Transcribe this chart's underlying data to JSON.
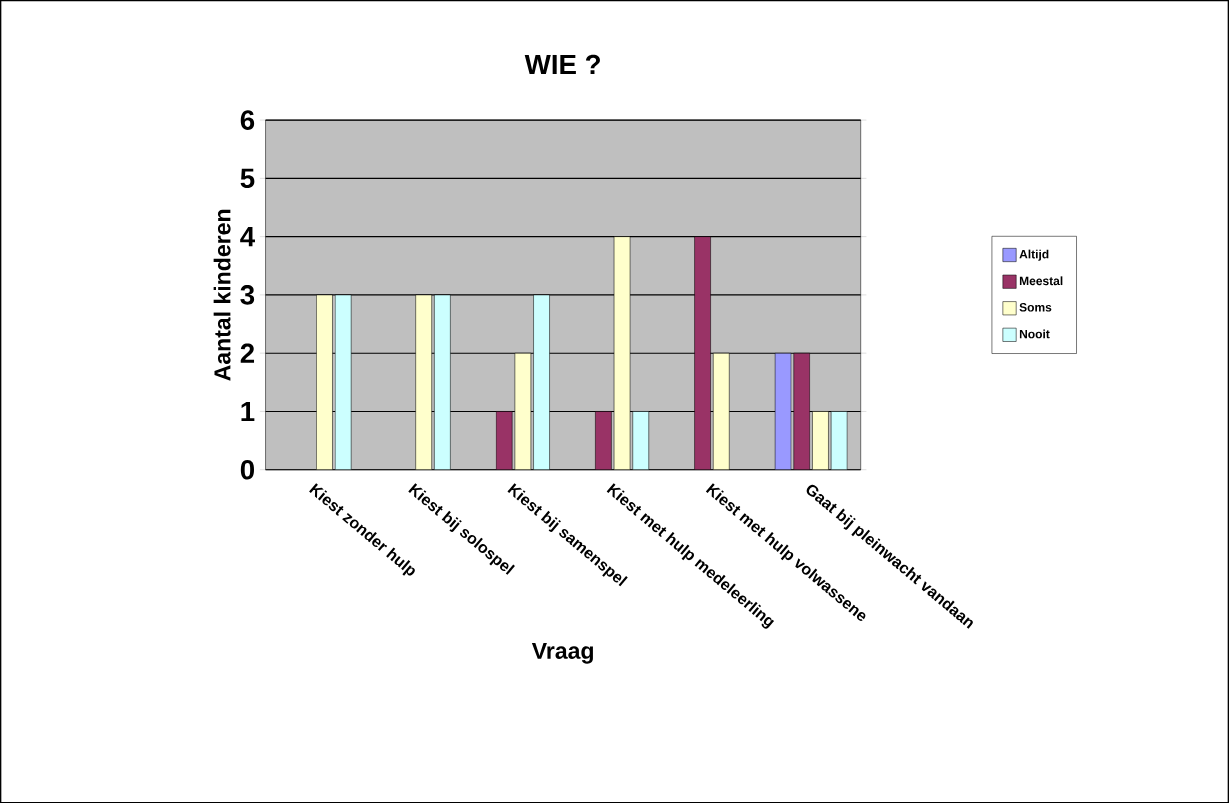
{
  "chart_data": {
    "type": "bar",
    "title": "WIE ?",
    "xlabel": "Vraag",
    "ylabel": "Aantal kinderen",
    "categories": [
      "Kiest zonder hulp",
      "Kiest bij solospel",
      "Kiest bij samenspel",
      "Kiest met hulp medeleerling",
      "Kiest met hulp volwassene",
      "Gaat bij pleinwacht vandaan"
    ],
    "series": [
      {
        "name": "Altijd",
        "color": "#9999ff",
        "values": [
          null,
          null,
          null,
          null,
          null,
          2
        ]
      },
      {
        "name": "Meestal",
        "color": "#993366",
        "values": [
          null,
          null,
          1,
          1,
          4,
          2
        ]
      },
      {
        "name": "Soms",
        "color": "#ffffcc",
        "values": [
          3,
          3,
          2,
          4,
          2,
          1
        ]
      },
      {
        "name": "Nooit",
        "color": "#ccffff",
        "values": [
          3,
          3,
          3,
          1,
          null,
          1
        ]
      }
    ],
    "ylim": [
      0,
      6
    ],
    "yticks": [
      0,
      1,
      2,
      3,
      4,
      5,
      6
    ],
    "grid": "y",
    "legend": "right"
  }
}
